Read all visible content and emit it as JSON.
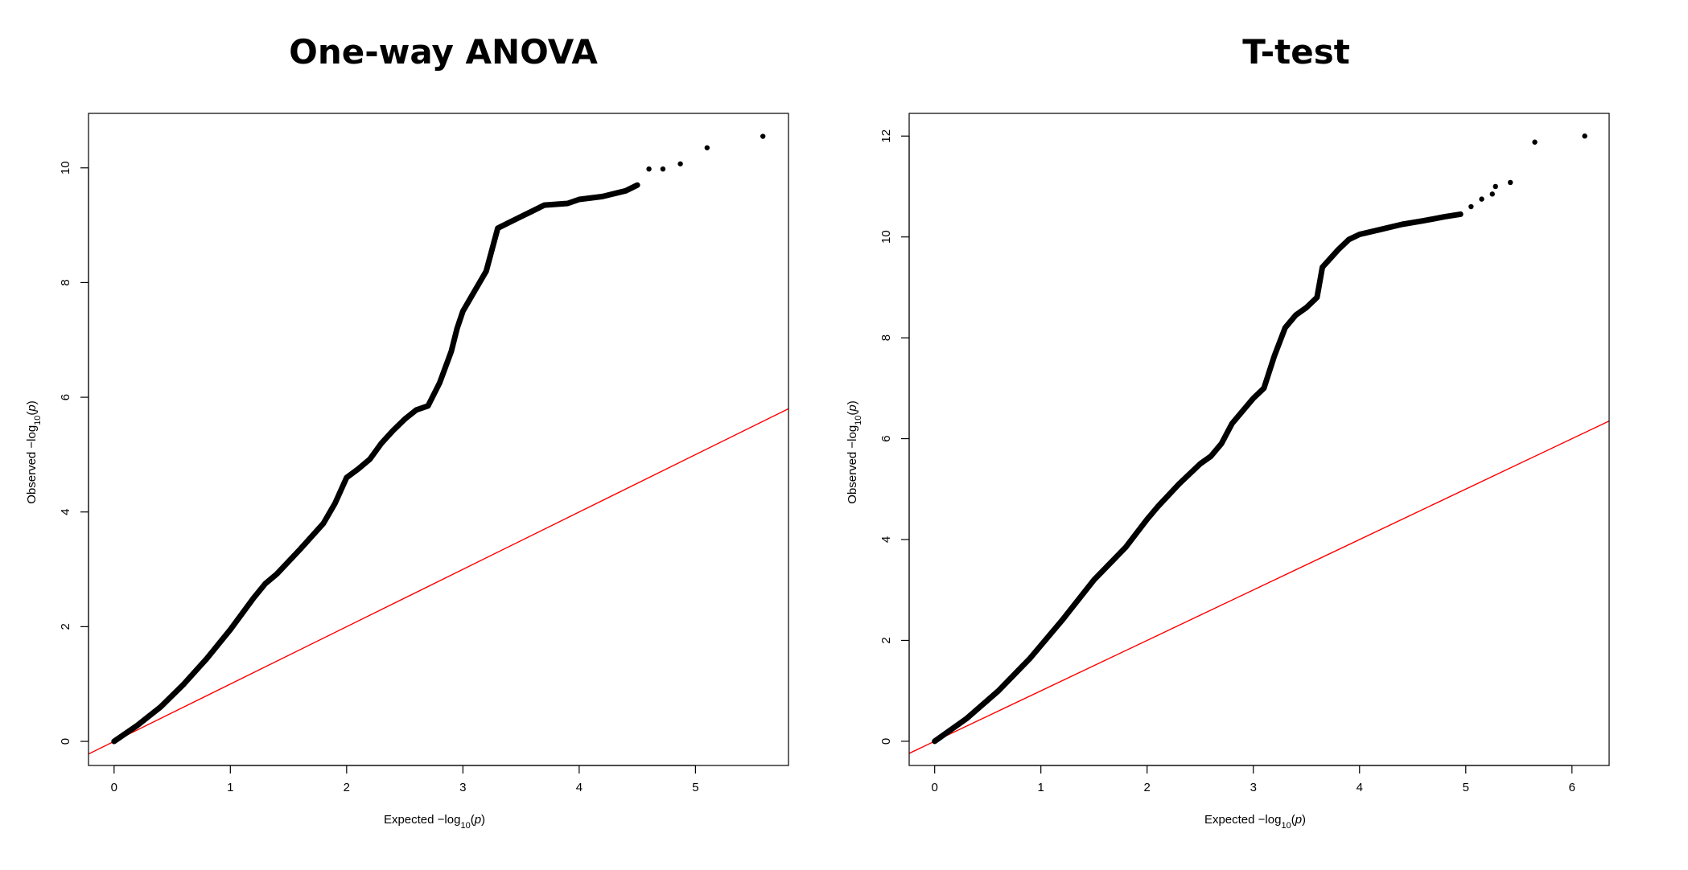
{
  "chart_data": [
    {
      "type": "scatter",
      "title": "One-way ANOVA",
      "xlabel": "Expected −log₁₀(p)",
      "ylabel": "Observed −log₁₀(p)",
      "xlabel_parts": {
        "prefix": "Expected  −log",
        "sub": "10",
        "open": "(",
        "var": "p",
        "close": ")"
      },
      "ylabel_parts": {
        "prefix": "Observed  −log",
        "sub": "10",
        "open": "(",
        "var": "p",
        "close": ")"
      },
      "xlim": [
        -0.22,
        5.8
      ],
      "ylim": [
        -0.42,
        10.95
      ],
      "x_ticks": [
        0,
        1,
        2,
        3,
        4,
        5
      ],
      "y_ticks": [
        0,
        2,
        4,
        6,
        8,
        10
      ],
      "grid": false,
      "reference_line": {
        "slope": 1,
        "intercept": 0,
        "color": "#ff0000"
      },
      "point_color": "#000000",
      "curve": [
        [
          0,
          0
        ],
        [
          0.2,
          0.28
        ],
        [
          0.4,
          0.6
        ],
        [
          0.6,
          1.0
        ],
        [
          0.8,
          1.45
        ],
        [
          1.0,
          1.95
        ],
        [
          1.2,
          2.5
        ],
        [
          1.3,
          2.75
        ],
        [
          1.4,
          2.92
        ],
        [
          1.6,
          3.35
        ],
        [
          1.8,
          3.8
        ],
        [
          1.9,
          4.15
        ],
        [
          2.0,
          4.6
        ],
        [
          2.1,
          4.75
        ],
        [
          2.2,
          4.92
        ],
        [
          2.3,
          5.2
        ],
        [
          2.4,
          5.42
        ],
        [
          2.5,
          5.62
        ],
        [
          2.6,
          5.78
        ],
        [
          2.7,
          5.85
        ],
        [
          2.8,
          6.25
        ],
        [
          2.9,
          6.8
        ],
        [
          2.95,
          7.2
        ],
        [
          3.0,
          7.5
        ],
        [
          3.1,
          7.85
        ],
        [
          3.2,
          8.2
        ],
        [
          3.3,
          8.95
        ],
        [
          3.4,
          9.05
        ],
        [
          3.5,
          9.15
        ],
        [
          3.6,
          9.25
        ],
        [
          3.7,
          9.35
        ],
        [
          3.9,
          9.38
        ],
        [
          4.0,
          9.45
        ],
        [
          4.2,
          9.5
        ],
        [
          4.4,
          9.6
        ],
        [
          4.5,
          9.7
        ]
      ],
      "tail_points": [
        [
          4.6,
          9.98
        ],
        [
          4.72,
          9.98
        ],
        [
          4.87,
          10.07
        ],
        [
          5.1,
          10.35
        ],
        [
          5.58,
          10.55
        ]
      ]
    },
    {
      "type": "scatter",
      "title": "T-test",
      "xlabel": "Expected −log₁₀(p)",
      "ylabel": "Observed −log₁₀(p)",
      "xlabel_parts": {
        "prefix": "Expected  −log",
        "sub": "10",
        "open": "(",
        "var": "p",
        "close": ")"
      },
      "ylabel_parts": {
        "prefix": "Observed  −log",
        "sub": "10",
        "open": "(",
        "var": "p",
        "close": ")"
      },
      "xlim": [
        -0.24,
        6.35
      ],
      "ylim": [
        -0.48,
        12.45
      ],
      "x_ticks": [
        0,
        1,
        2,
        3,
        4,
        5,
        6
      ],
      "y_ticks": [
        0,
        2,
        4,
        6,
        8,
        10,
        12
      ],
      "grid": false,
      "reference_line": {
        "slope": 1,
        "intercept": 0,
        "color": "#ff0000"
      },
      "point_color": "#000000",
      "curve": [
        [
          0,
          0
        ],
        [
          0.3,
          0.45
        ],
        [
          0.6,
          1.0
        ],
        [
          0.9,
          1.65
        ],
        [
          1.2,
          2.4
        ],
        [
          1.5,
          3.2
        ],
        [
          1.8,
          3.85
        ],
        [
          2.0,
          4.4
        ],
        [
          2.1,
          4.65
        ],
        [
          2.3,
          5.1
        ],
        [
          2.5,
          5.5
        ],
        [
          2.6,
          5.65
        ],
        [
          2.7,
          5.9
        ],
        [
          2.8,
          6.3
        ],
        [
          3.0,
          6.8
        ],
        [
          3.1,
          7.0
        ],
        [
          3.2,
          7.65
        ],
        [
          3.3,
          8.2
        ],
        [
          3.4,
          8.45
        ],
        [
          3.5,
          8.6
        ],
        [
          3.6,
          8.8
        ],
        [
          3.65,
          9.4
        ],
        [
          3.8,
          9.75
        ],
        [
          3.9,
          9.95
        ],
        [
          4.0,
          10.05
        ],
        [
          4.2,
          10.15
        ],
        [
          4.4,
          10.25
        ],
        [
          4.6,
          10.32
        ],
        [
          4.8,
          10.4
        ],
        [
          4.95,
          10.45
        ]
      ],
      "tail_points": [
        [
          5.05,
          10.6
        ],
        [
          5.15,
          10.75
        ],
        [
          5.25,
          10.85
        ],
        [
          5.28,
          11.0
        ],
        [
          5.42,
          11.08
        ],
        [
          5.65,
          11.88
        ],
        [
          6.12,
          12.0
        ]
      ]
    }
  ]
}
